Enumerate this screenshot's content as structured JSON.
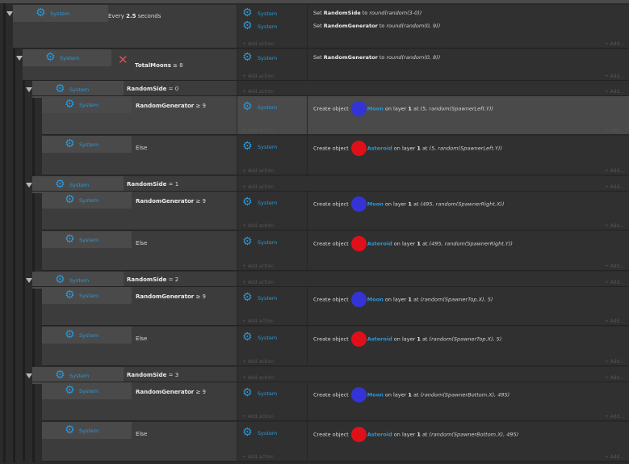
{
  "system_label": "System",
  "add_action_label": "Add action",
  "add_short_label": "Add...",
  "gear_icon": "⚙",
  "colors": {
    "accent": "#2b97d6",
    "moon": "#3434d6",
    "asteroid": "#e0101b",
    "x_icon": "#e04e4e"
  },
  "events": [
    {
      "condition": {
        "pre": "Every ",
        "bold": "2.5",
        "post": " seconds"
      },
      "actions": [
        {
          "pre": "Set ",
          "bold": "RandomSide",
          "mid": " to ",
          "ital": "round(random(3-0))"
        },
        {
          "pre": "Set ",
          "bold": "RandomGenerator",
          "mid": " to ",
          "ital": "round(random(0, 9))"
        }
      ]
    },
    {
      "condition": {
        "bold": "TotalMoons",
        "post": " ≥ 8",
        "invert_icon": "✕"
      },
      "actions": [
        {
          "pre": "Set ",
          "bold": "RandomGenerator",
          "mid": " to ",
          "ital": "round(random(0, 8))"
        }
      ]
    },
    {
      "condition": {
        "bold": "RandomSide",
        "post": " = 0"
      }
    },
    {
      "condition": {
        "bold": "RandomGenerator",
        "post": " ≥ 9"
      },
      "actions": [
        {
          "pre": "Create object ",
          "obj": "Moon",
          "layer": "1",
          "coords": "(5, random(SpawnerLeft.Y))"
        }
      ]
    },
    {
      "condition": {
        "post": "Else"
      },
      "actions": [
        {
          "pre": "Create object ",
          "obj": "Asteroid",
          "layer": "1",
          "coords": "(5, random(SpawnerLeft.Y))"
        }
      ]
    },
    {
      "condition": {
        "bold": "RandomSide",
        "post": " = 1"
      }
    },
    {
      "condition": {
        "bold": "RandomGenerator",
        "post": " ≥ 9"
      },
      "actions": [
        {
          "pre": "Create object ",
          "obj": "Moon",
          "layer": "1",
          "coords": "(495, random(SpawnerRight.X))"
        }
      ]
    },
    {
      "condition": {
        "post": "Else"
      },
      "actions": [
        {
          "pre": "Create object ",
          "obj": "Asteroid",
          "layer": "1",
          "coords": "(495, random(SpawnerRight.Y))"
        }
      ]
    },
    {
      "condition": {
        "bold": "RandomSide",
        "post": " = 2"
      }
    },
    {
      "condition": {
        "bold": "RandomGenerator",
        "post": " ≥ 9"
      },
      "actions": [
        {
          "pre": "Create object ",
          "obj": "Moon",
          "layer": "1",
          "coords": "(random(SpawnerTop.X), 5)"
        }
      ]
    },
    {
      "condition": {
        "post": "Else"
      },
      "actions": [
        {
          "pre": "Create object ",
          "obj": "Asteroid",
          "layer": "1",
          "coords": "(random(SpawnerTop.X), 5)"
        }
      ]
    },
    {
      "condition": {
        "bold": "RandomSide",
        "post": " = 3"
      }
    },
    {
      "condition": {
        "bold": "RandomGenerator",
        "post": " ≥ 9"
      },
      "actions": [
        {
          "pre": "Create object ",
          "obj": "Moon",
          "layer": "1",
          "coords": "(random(SpawnerBottom.X), 495)"
        }
      ]
    },
    {
      "condition": {
        "post": "Else"
      },
      "actions": [
        {
          "pre": "Create object ",
          "obj": "Asteroid",
          "layer": "1",
          "coords": "(random(SpawnerBottom.X), 495)"
        }
      ]
    }
  ]
}
